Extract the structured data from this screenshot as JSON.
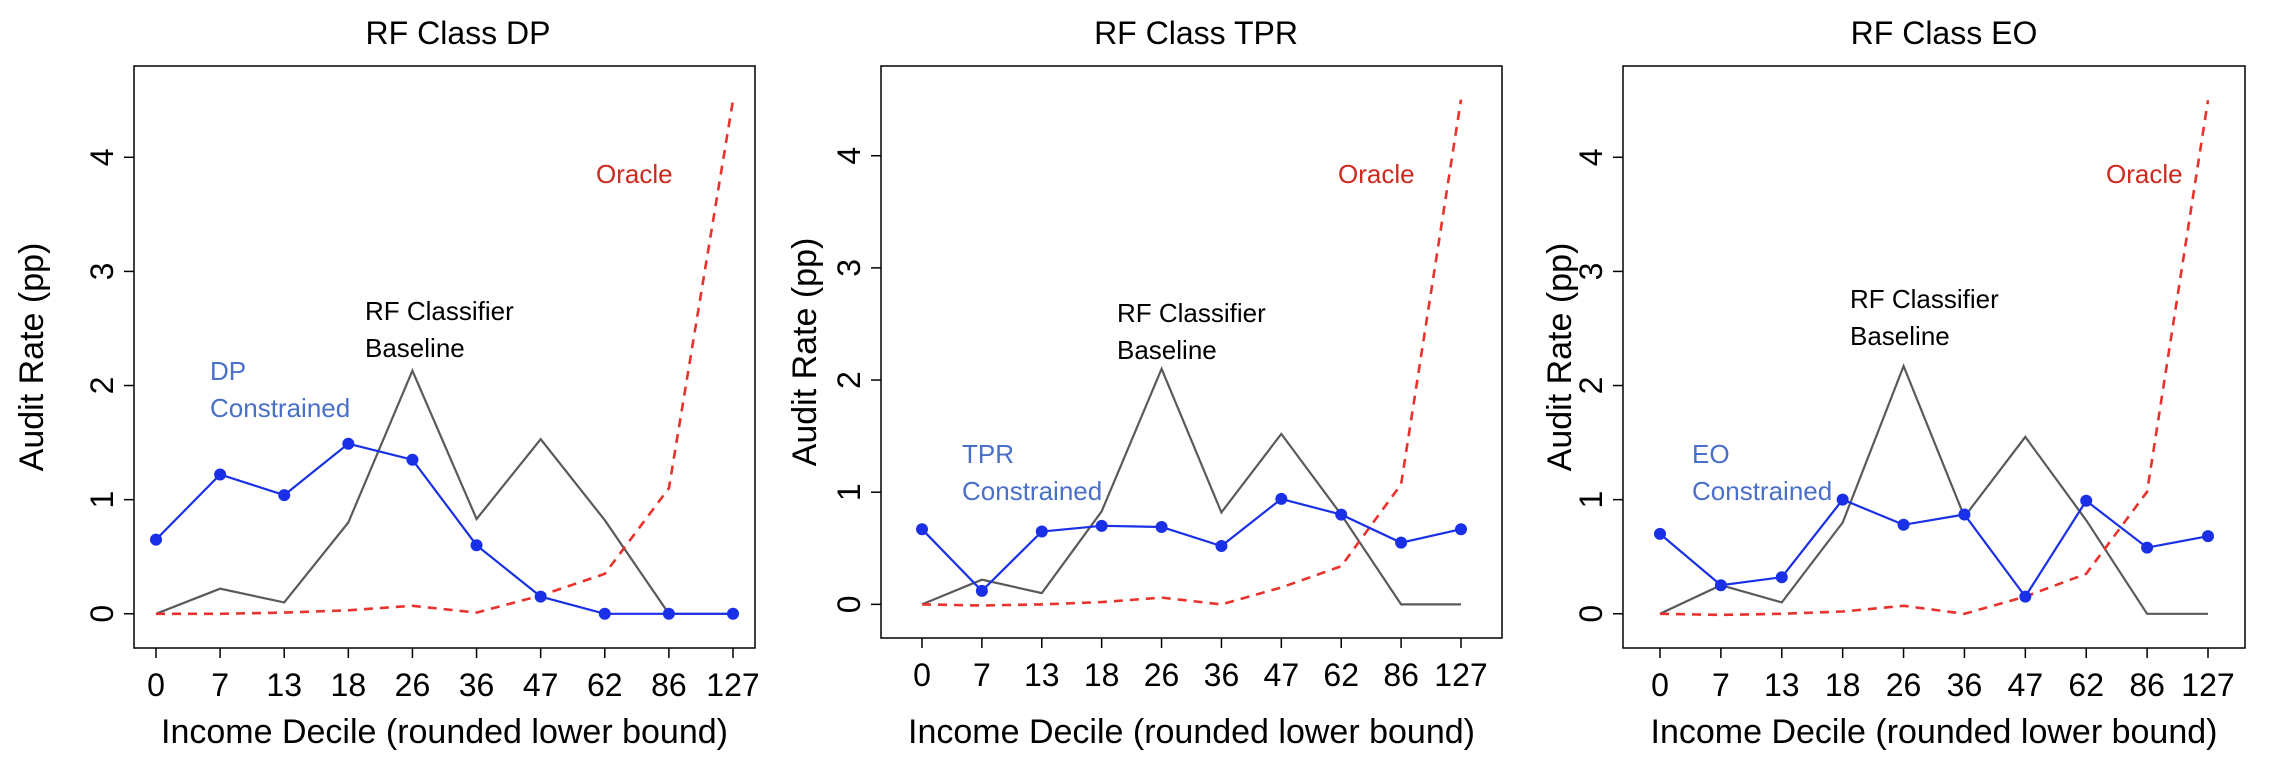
{
  "colors": {
    "oracle": "#e8322c",
    "constrained": "#1a30e6",
    "baseline": "#5a5a5a",
    "annotation_blue": "#4a6fc9",
    "annotation_red": "#cc2a1e",
    "frame": "#000000"
  },
  "chart_data": [
    {
      "type": "line",
      "title": "RF Class DP",
      "xlabel": "Income Decile (rounded lower bound)",
      "ylabel": "Audit Rate (pp)",
      "categories": [
        "0",
        "7",
        "13",
        "18",
        "26",
        "36",
        "47",
        "62",
        "86",
        "127"
      ],
      "ylim": [
        -0.3,
        4.8
      ],
      "yticks": [
        "0",
        "1",
        "2",
        "3",
        "4"
      ],
      "series": [
        {
          "key": "constrained",
          "values": [
            0.65,
            1.22,
            1.04,
            1.49,
            1.35,
            0.6,
            0.15,
            0.0,
            0.0,
            0.0
          ]
        },
        {
          "key": "baseline",
          "values": [
            0.0,
            0.22,
            0.1,
            0.8,
            2.13,
            0.83,
            1.53,
            0.82,
            0.0,
            0.0
          ]
        },
        {
          "key": "oracle",
          "values": [
            0.0,
            0.0,
            0.01,
            0.03,
            0.07,
            0.01,
            0.16,
            0.35,
            1.1,
            4.5
          ]
        }
      ],
      "annotations": {
        "constrained": [
          "DP",
          "Constrained"
        ],
        "baseline": [
          "RF Classifier",
          "Baseline"
        ],
        "oracle": [
          "Oracle"
        ]
      }
    },
    {
      "type": "line",
      "title": "RF Class TPR",
      "xlabel": "Income Decile (rounded lower bound)",
      "ylabel": "Audit Rate (pp)",
      "categories": [
        "0",
        "7",
        "13",
        "18",
        "26",
        "36",
        "47",
        "62",
        "86",
        "127"
      ],
      "ylim": [
        -0.3,
        4.8
      ],
      "yticks": [
        "0",
        "1",
        "2",
        "3",
        "4"
      ],
      "series": [
        {
          "key": "constrained",
          "values": [
            0.67,
            0.12,
            0.65,
            0.7,
            0.69,
            0.52,
            0.94,
            0.8,
            0.55,
            0.67
          ]
        },
        {
          "key": "baseline",
          "values": [
            0.0,
            0.22,
            0.1,
            0.83,
            2.1,
            0.82,
            1.52,
            0.8,
            0.0,
            0.0
          ]
        },
        {
          "key": "oracle",
          "values": [
            0.0,
            -0.01,
            0.0,
            0.02,
            0.06,
            0.0,
            0.15,
            0.34,
            1.07,
            4.5
          ]
        }
      ],
      "annotations": {
        "constrained": [
          "TPR",
          "Constrained"
        ],
        "baseline": [
          "RF Classifier",
          "Baseline"
        ],
        "oracle": [
          "Oracle"
        ]
      }
    },
    {
      "type": "line",
      "title": "RF Class EO",
      "xlabel": "Income Decile (rounded lower bound)",
      "ylabel": "Audit Rate (pp)",
      "categories": [
        "0",
        "7",
        "13",
        "18",
        "26",
        "36",
        "47",
        "62",
        "86",
        "127"
      ],
      "ylim": [
        -0.3,
        4.8
      ],
      "yticks": [
        "0",
        "1",
        "2",
        "3",
        "4"
      ],
      "series": [
        {
          "key": "constrained",
          "values": [
            0.7,
            0.25,
            0.32,
            1.0,
            0.78,
            0.87,
            0.15,
            0.99,
            0.58,
            0.68
          ]
        },
        {
          "key": "baseline",
          "values": [
            0.0,
            0.25,
            0.1,
            0.8,
            2.17,
            0.85,
            1.55,
            0.82,
            0.0,
            0.0
          ]
        },
        {
          "key": "oracle",
          "values": [
            0.0,
            -0.01,
            0.0,
            0.02,
            0.07,
            0.0,
            0.15,
            0.35,
            1.07,
            4.5
          ]
        }
      ],
      "annotations": {
        "constrained": [
          "EO",
          "Constrained"
        ],
        "baseline": [
          "RF Classifier",
          "Baseline"
        ],
        "oracle": [
          "Oracle"
        ]
      }
    }
  ]
}
